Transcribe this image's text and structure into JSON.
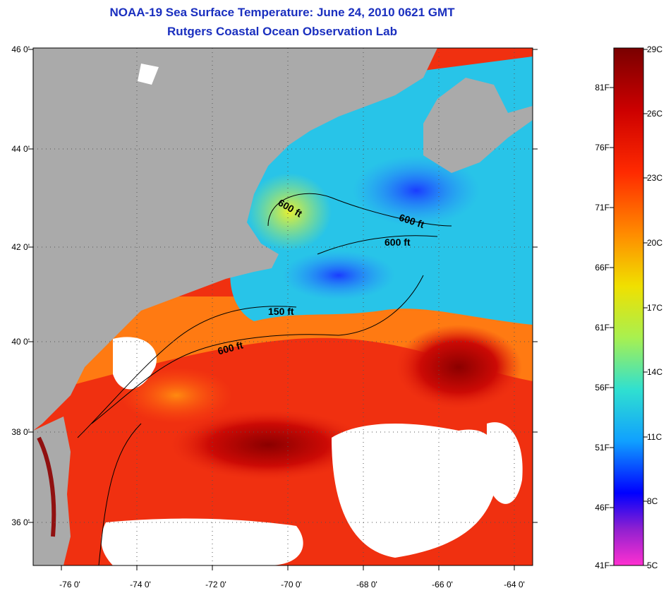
{
  "title": "NOAA-19 Sea Surface Temperature:  June 24, 2010 0621 GMT",
  "subtitle": "Rutgers Coastal Ocean Observation Lab",
  "lat_ticks": [
    "46 0'",
    "44 0'",
    "42 0'",
    "40 0'",
    "38 0'",
    "36 0'"
  ],
  "lon_ticks": [
    "-76 0'",
    "-74 0'",
    "-72 0'",
    "-70 0'",
    "-68 0'",
    "-66 0'",
    "-64 0'"
  ],
  "contour_labels": [
    "600 ft",
    "600 ft",
    "600 ft",
    "150 ft",
    "600 ft"
  ],
  "colorbar": {
    "fahrenheit": [
      "81F",
      "76F",
      "71F",
      "66F",
      "61F",
      "56F",
      "51F",
      "46F",
      "41F"
    ],
    "celsius": [
      "29C",
      "26C",
      "23C",
      "20C",
      "17C",
      "14C",
      "11C",
      "8C",
      "5C"
    ]
  },
  "colors": {
    "title": "#1a2fbf",
    "land": "#aaaaaa",
    "cloud": "#ffffff"
  }
}
